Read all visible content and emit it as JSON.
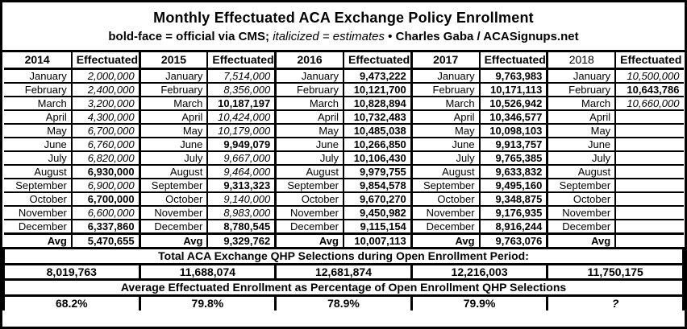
{
  "header": {
    "title": "Monthly Effectuated ACA Exchange Policy Enrollment",
    "subtitle_bold1": "bold-face = official via CMS;",
    "subtitle_italic": "italicized = estimates",
    "subtitle_sep": "•",
    "subtitle_bold2": "Charles Gaba / ACASignups.net"
  },
  "table": {
    "effectuated_label": "Effectuated",
    "avg_label": "Avg",
    "months": [
      "January",
      "February",
      "March",
      "April",
      "May",
      "June",
      "July",
      "August",
      "September",
      "October",
      "November",
      "December"
    ],
    "years": [
      {
        "year": "2014",
        "values": [
          "2,000,000",
          "2,400,000",
          "3,200,000",
          "4,300,000",
          "6,700,000",
          "6,760,000",
          "6,820,000",
          "6,930,000",
          "6,900,000",
          "6,700,000",
          "6,600,000",
          "6,337,860"
        ],
        "styles": [
          "estimate",
          "estimate",
          "estimate",
          "estimate",
          "estimate",
          "estimate",
          "estimate",
          "official",
          "estimate",
          "official",
          "estimate",
          "official"
        ],
        "avg": "5,470,655"
      },
      {
        "year": "2015",
        "values": [
          "7,514,000",
          "8,356,000",
          "10,187,197",
          "10,424,000",
          "10,179,000",
          "9,949,079",
          "9,667,000",
          "9,464,000",
          "9,313,323",
          "9,140,000",
          "8,983,000",
          "8,780,545"
        ],
        "styles": [
          "estimate",
          "estimate",
          "official",
          "estimate",
          "estimate",
          "official",
          "estimate",
          "estimate",
          "official",
          "estimate",
          "estimate",
          "official"
        ],
        "avg": "9,329,762"
      },
      {
        "year": "2016",
        "values": [
          "9,473,222",
          "10,121,700",
          "10,828,894",
          "10,732,483",
          "10,485,038",
          "10,266,850",
          "10,106,430",
          "9,979,755",
          "9,854,578",
          "9,670,270",
          "9,450,982",
          "9,115,154"
        ],
        "styles": [
          "official",
          "official",
          "official",
          "official",
          "official",
          "official",
          "official",
          "official",
          "official",
          "official",
          "official",
          "official"
        ],
        "avg": "10,007,113"
      },
      {
        "year": "2017",
        "values": [
          "9,763,983",
          "10,171,113",
          "10,526,942",
          "10,346,577",
          "10,098,103",
          "9,913,757",
          "9,765,385",
          "9,633,832",
          "9,495,160",
          "9,348,875",
          "9,176,935",
          "8,916,244"
        ],
        "styles": [
          "official",
          "official",
          "official",
          "official",
          "official",
          "official",
          "official",
          "official",
          "official",
          "official",
          "official",
          "official"
        ],
        "avg": "9,763,076"
      },
      {
        "year": "2018",
        "values": [
          "10,500,000",
          "10,643,786",
          "10,660,000",
          "",
          "",
          "",
          "",
          "",
          "",
          "",
          "",
          ""
        ],
        "styles": [
          "estimate",
          "official",
          "estimate",
          "",
          "",
          "",
          "",
          "",
          "",
          "",
          "",
          ""
        ],
        "avg": ""
      }
    ]
  },
  "totals": {
    "title": "Total ACA Exchange QHP Selections during Open Enrollment Period:",
    "values": [
      "8,019,763",
      "11,688,074",
      "12,681,874",
      "12,216,003",
      "11,750,175"
    ]
  },
  "percentages": {
    "title": "Average Effectuated Enrollment as Percentage of Open Enrollment QHP Selections",
    "values": [
      "68.2%",
      "79.8%",
      "78.9%",
      "79.9%",
      "?"
    ]
  },
  "chart_data": {
    "type": "table",
    "title": "Monthly Effectuated ACA Exchange Policy Enrollment",
    "subtitle": "bold-face = official via CMS; italicized = estimates • Charles Gaba / ACASignups.net",
    "columns": [
      "2014",
      "Effectuated",
      "2015",
      "Effectuated",
      "2016",
      "Effectuated",
      "2017",
      "Effectuated",
      "2018",
      "Effectuated"
    ],
    "row_labels": [
      "January",
      "February",
      "March",
      "April",
      "May",
      "June",
      "July",
      "August",
      "September",
      "October",
      "November",
      "December",
      "Avg"
    ],
    "series": [
      {
        "name": "2014",
        "values": [
          2000000,
          2400000,
          3200000,
          4300000,
          6700000,
          6760000,
          6820000,
          6930000,
          6900000,
          6700000,
          6600000,
          6337860
        ],
        "avg": 5470655
      },
      {
        "name": "2015",
        "values": [
          7514000,
          8356000,
          10187197,
          10424000,
          10179000,
          9949079,
          9667000,
          9464000,
          9313323,
          9140000,
          8983000,
          8780545
        ],
        "avg": 9329762
      },
      {
        "name": "2016",
        "values": [
          9473222,
          10121700,
          10828894,
          10732483,
          10485038,
          10266850,
          10106430,
          9979755,
          9854578,
          9670270,
          9450982,
          9115154
        ],
        "avg": 10007113
      },
      {
        "name": "2017",
        "values": [
          9763983,
          10171113,
          10526942,
          10346577,
          10098103,
          9913757,
          9765385,
          9633832,
          9495160,
          9348875,
          9176935,
          8916244
        ],
        "avg": 9763076
      },
      {
        "name": "2018",
        "values": [
          10500000,
          10643786,
          10660000,
          null,
          null,
          null,
          null,
          null,
          null,
          null,
          null,
          null
        ],
        "avg": null
      }
    ],
    "qhp_selections_open_enrollment": [
      8019763,
      11688074,
      12681874,
      12216003,
      11750175
    ],
    "effectuated_pct_of_selections": [
      "68.2%",
      "79.8%",
      "78.9%",
      "79.9%",
      "?"
    ]
  }
}
